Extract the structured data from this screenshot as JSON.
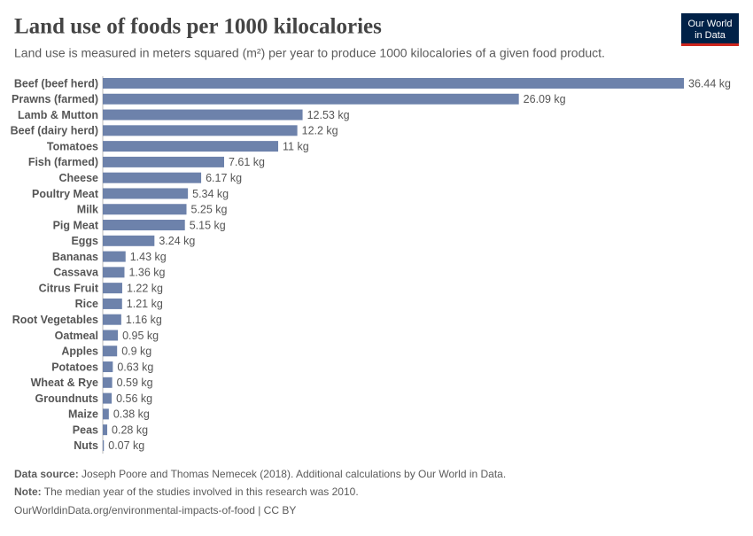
{
  "chart_data": {
    "type": "bar",
    "orientation": "horizontal",
    "title": "Land use of foods per 1000 kilocalories",
    "subtitle": "Land use is measured in meters squared (m²) per year to produce 1000 kilocalories of a given food product.",
    "categories": [
      "Beef (beef herd)",
      "Prawns (farmed)",
      "Lamb & Mutton",
      "Beef (dairy herd)",
      "Tomatoes",
      "Fish (farmed)",
      "Cheese",
      "Poultry Meat",
      "Milk",
      "Pig Meat",
      "Eggs",
      "Bananas",
      "Cassava",
      "Citrus Fruit",
      "Rice",
      "Root Vegetables",
      "Oatmeal",
      "Apples",
      "Potatoes",
      "Wheat & Rye",
      "Groundnuts",
      "Maize",
      "Peas",
      "Nuts"
    ],
    "values": [
      36.44,
      26.09,
      12.53,
      12.2,
      11,
      7.61,
      6.17,
      5.34,
      5.25,
      5.15,
      3.24,
      1.43,
      1.36,
      1.22,
      1.21,
      1.16,
      0.95,
      0.9,
      0.63,
      0.59,
      0.56,
      0.38,
      0.28,
      0.07
    ],
    "value_labels": [
      "36.44 kg",
      "26.09 kg",
      "12.53 kg",
      "12.2 kg",
      "11 kg",
      "7.61 kg",
      "6.17 kg",
      "5.34 kg",
      "5.25 kg",
      "5.15 kg",
      "3.24 kg",
      "1.43 kg",
      "1.36 kg",
      "1.22 kg",
      "1.21 kg",
      "1.16 kg",
      "0.95 kg",
      "0.9 kg",
      "0.63 kg",
      "0.59 kg",
      "0.56 kg",
      "0.38 kg",
      "0.28 kg",
      "0.07 kg"
    ],
    "color": "#6d82ab"
  },
  "logo": {
    "line1": "Our World",
    "line2": "in Data"
  },
  "footer": {
    "source_label": "Data source:",
    "source_text": "Joseph Poore and Thomas Nemecek (2018). Additional calculations by Our World in Data.",
    "note_label": "Note:",
    "note_text": "The median year of the studies involved in this research was 2010.",
    "url": "OurWorldinData.org/environmental-impacts-of-food | CC BY"
  }
}
